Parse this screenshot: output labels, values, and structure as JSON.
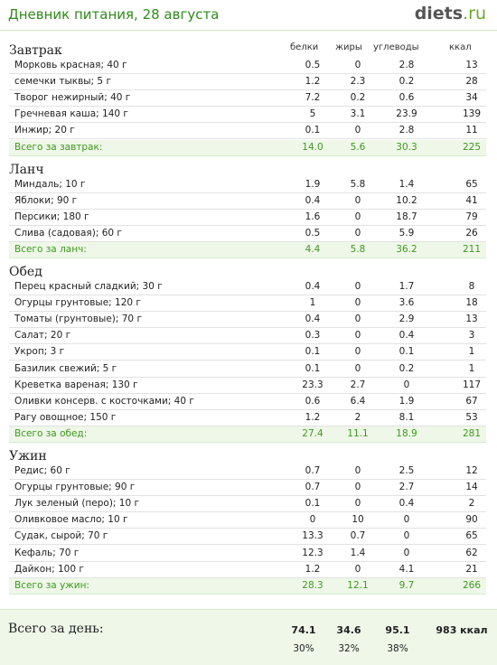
{
  "header": {
    "title": "Дневник питания, 28 августа",
    "brand": "diets",
    "brand_suffix": ".ru"
  },
  "columns": {
    "protein": "белки",
    "fat": "жиры",
    "carbs": "углеводы",
    "kcal": "ккал"
  },
  "meals": [
    {
      "title": "Завтрак",
      "items": [
        {
          "name": "Морковь красная; 40 г",
          "protein": "0.5",
          "fat": "0",
          "carbs": "2.8",
          "kcal": "13"
        },
        {
          "name": "семечки тыквы; 5 г",
          "protein": "1.2",
          "fat": "2.3",
          "carbs": "0.2",
          "kcal": "28"
        },
        {
          "name": "Творог нежирный; 40 г",
          "protein": "7.2",
          "fat": "0.2",
          "carbs": "0.6",
          "kcal": "34"
        },
        {
          "name": "Гречневая каша; 140 г",
          "protein": "5",
          "fat": "3.1",
          "carbs": "23.9",
          "kcal": "139"
        },
        {
          "name": "Инжир; 20 г",
          "protein": "0.1",
          "fat": "0",
          "carbs": "2.8",
          "kcal": "11"
        }
      ],
      "total": {
        "name": "Всего за завтрак:",
        "protein": "14.0",
        "fat": "5.6",
        "carbs": "30.3",
        "kcal": "225"
      }
    },
    {
      "title": "Ланч",
      "items": [
        {
          "name": "Миндаль; 10 г",
          "protein": "1.9",
          "fat": "5.8",
          "carbs": "1.4",
          "kcal": "65"
        },
        {
          "name": "Яблоки; 90 г",
          "protein": "0.4",
          "fat": "0",
          "carbs": "10.2",
          "kcal": "41"
        },
        {
          "name": "Персики; 180 г",
          "protein": "1.6",
          "fat": "0",
          "carbs": "18.7",
          "kcal": "79"
        },
        {
          "name": "Слива (садовая); 60 г",
          "protein": "0.5",
          "fat": "0",
          "carbs": "5.9",
          "kcal": "26"
        }
      ],
      "total": {
        "name": "Всего за ланч:",
        "protein": "4.4",
        "fat": "5.8",
        "carbs": "36.2",
        "kcal": "211"
      }
    },
    {
      "title": "Обед",
      "items": [
        {
          "name": "Перец красный сладкий; 30 г",
          "protein": "0.4",
          "fat": "0",
          "carbs": "1.7",
          "kcal": "8"
        },
        {
          "name": "Огурцы грунтовые; 120 г",
          "protein": "1",
          "fat": "0",
          "carbs": "3.6",
          "kcal": "18"
        },
        {
          "name": "Томаты (грунтовые); 70 г",
          "protein": "0.4",
          "fat": "0",
          "carbs": "2.9",
          "kcal": "13"
        },
        {
          "name": "Салат; 20 г",
          "protein": "0.3",
          "fat": "0",
          "carbs": "0.4",
          "kcal": "3"
        },
        {
          "name": "Укроп; 3 г",
          "protein": "0.1",
          "fat": "0",
          "carbs": "0.1",
          "kcal": "1"
        },
        {
          "name": "Базилик свежий; 5 г",
          "protein": "0.1",
          "fat": "0",
          "carbs": "0.2",
          "kcal": "1"
        },
        {
          "name": "Креветка вареная; 130 г",
          "protein": "23.3",
          "fat": "2.7",
          "carbs": "0",
          "kcal": "117"
        },
        {
          "name": "Оливки консерв. с косточками; 40 г",
          "protein": "0.6",
          "fat": "6.4",
          "carbs": "1.9",
          "kcal": "67"
        },
        {
          "name": "Рагу овощное; 150 г",
          "protein": "1.2",
          "fat": "2",
          "carbs": "8.1",
          "kcal": "53"
        }
      ],
      "total": {
        "name": "Всего за обед:",
        "protein": "27.4",
        "fat": "11.1",
        "carbs": "18.9",
        "kcal": "281"
      }
    },
    {
      "title": "Ужин",
      "items": [
        {
          "name": "Редис; 60 г",
          "protein": "0.7",
          "fat": "0",
          "carbs": "2.5",
          "kcal": "12"
        },
        {
          "name": "Огурцы грунтовые; 90 г",
          "protein": "0.7",
          "fat": "0",
          "carbs": "2.7",
          "kcal": "14"
        },
        {
          "name": "Лук зеленый (перо); 10 г",
          "protein": "0.1",
          "fat": "0",
          "carbs": "0.4",
          "kcal": "2"
        },
        {
          "name": "Оливковое масло; 10 г",
          "protein": "0",
          "fat": "10",
          "carbs": "0",
          "kcal": "90"
        },
        {
          "name": "Судак, сырой; 70 г",
          "protein": "13.3",
          "fat": "0.7",
          "carbs": "0",
          "kcal": "65"
        },
        {
          "name": "Кефаль; 70 г",
          "protein": "12.3",
          "fat": "1.4",
          "carbs": "0",
          "kcal": "62"
        },
        {
          "name": "Дайкон; 100 г",
          "protein": "1.2",
          "fat": "0",
          "carbs": "4.1",
          "kcal": "21"
        }
      ],
      "total": {
        "name": "Всего за ужин:",
        "protein": "28.3",
        "fat": "12.1",
        "carbs": "9.7",
        "kcal": "266"
      }
    }
  ],
  "day": {
    "label": "Всего за день:",
    "protein": "74.1",
    "fat": "34.6",
    "carbs": "95.1",
    "kcal": "983 ккал",
    "protein_pct": "30%",
    "fat_pct": "32%",
    "carbs_pct": "38%"
  },
  "colors": {
    "accent_green": "#2e8b1a",
    "total_bg": "#eef7e8",
    "total_text": "#3f9a1f"
  }
}
